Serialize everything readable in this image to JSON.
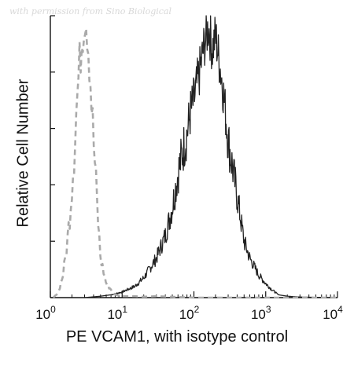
{
  "watermark": "with permission from Sino Biological",
  "chart_data": {
    "type": "line",
    "title": "",
    "xlabel": "PE VCAM1, with isotype control",
    "ylabel": "Relative Cell Number",
    "x_scale": "log",
    "xlim": [
      1,
      10000
    ],
    "ylim": [
      0,
      100
    ],
    "x_ticks": [
      {
        "base": "10",
        "exp": "0"
      },
      {
        "base": "10",
        "exp": "1"
      },
      {
        "base": "10",
        "exp": "2"
      },
      {
        "base": "10",
        "exp": "3"
      },
      {
        "base": "10",
        "exp": "4"
      }
    ],
    "y_tick_count": 6,
    "grid": false,
    "legend": "none",
    "series": [
      {
        "style": "solid",
        "color": "#222222",
        "x": [
          3,
          5,
          7,
          10,
          15,
          20,
          30,
          40,
          50,
          60,
          70,
          80,
          90,
          100,
          120,
          140,
          160,
          180,
          200,
          250,
          300,
          400,
          500,
          600,
          800,
          1000,
          1200,
          1500,
          2000,
          3000,
          5000,
          10000
        ],
        "y": [
          0,
          0.5,
          1,
          2,
          4,
          7,
          14,
          22,
          32,
          44,
          52,
          58,
          66,
          70,
          80,
          90,
          96,
          88,
          93,
          76,
          56,
          36,
          20,
          14,
          8,
          5,
          3,
          1,
          0.5,
          0.2,
          0.1,
          0
        ]
      },
      {
        "style": "dashed",
        "color": "#aaaaaa",
        "x": [
          1.1,
          1.3,
          1.5,
          1.7,
          1.9,
          2.1,
          2.3,
          2.5,
          2.7,
          3.0,
          3.2,
          3.5,
          3.8,
          4.2,
          4.6,
          5.0,
          6.0,
          8.0,
          10,
          15,
          20,
          30,
          100,
          10000
        ],
        "y": [
          0,
          2,
          8,
          18,
          32,
          48,
          66,
          80,
          90,
          100,
          98,
          84,
          66,
          46,
          28,
          14,
          5,
          1,
          0.5,
          0.5,
          0.3,
          0.5,
          0,
          0
        ]
      }
    ]
  }
}
